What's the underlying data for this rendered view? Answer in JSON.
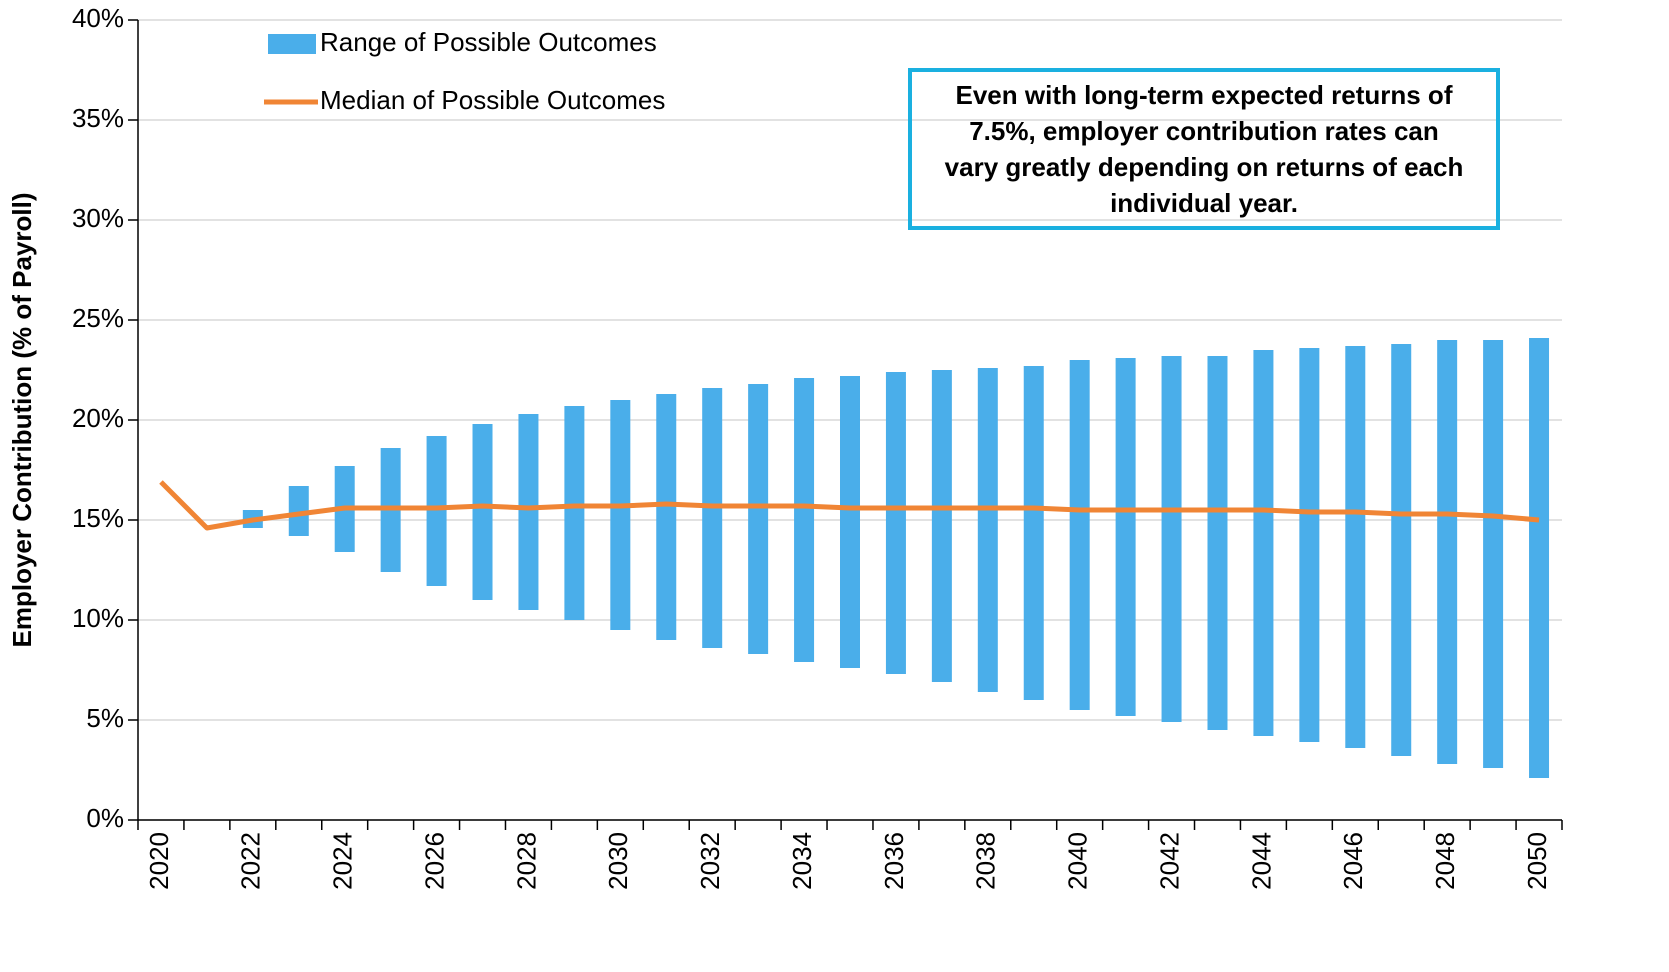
{
  "chart_data": {
    "type": "range-bar-line",
    "y_label": "Employer Contribution (% of Payroll)",
    "annotation": "Even with long-term expected returns of 7.5%, employer contribution rates can vary greatly depending on returns of each individual year.",
    "categories": [
      "2020",
      null,
      "2022",
      null,
      "2024",
      null,
      "2026",
      null,
      "2028",
      null,
      "2030",
      null,
      "2032",
      null,
      "2034",
      null,
      "2036",
      null,
      "2038",
      null,
      "2040",
      null,
      "2042",
      null,
      "2044",
      null,
      "2046",
      null,
      "2048",
      null,
      "2050"
    ],
    "ylim": [
      0,
      40
    ],
    "yticks": [
      {
        "value": 0,
        "label": "0%"
      },
      {
        "value": 5,
        "label": "5%"
      },
      {
        "value": 10,
        "label": "10%"
      },
      {
        "value": 15,
        "label": "15%"
      },
      {
        "value": 20,
        "label": "20%"
      },
      {
        "value": 25,
        "label": "25%"
      },
      {
        "value": 30,
        "label": "30%"
      },
      {
        "value": 35,
        "label": "35%"
      },
      {
        "value": 40,
        "label": "40%"
      }
    ],
    "grid": true,
    "series": [
      {
        "name": "Range of Possible Outcomes",
        "color": "#4aaeea",
        "low": [
          null,
          null,
          14.6,
          14.2,
          13.4,
          12.4,
          11.7,
          11.0,
          10.5,
          10.0,
          9.5,
          9.0,
          8.6,
          8.3,
          7.9,
          7.6,
          7.3,
          6.9,
          6.4,
          6.0,
          5.5,
          5.2,
          4.9,
          4.5,
          4.2,
          3.9,
          3.6,
          3.2,
          2.8,
          2.6,
          2.1
        ],
        "high": [
          null,
          null,
          15.5,
          16.7,
          17.7,
          18.6,
          19.2,
          19.8,
          20.3,
          20.7,
          21.0,
          21.3,
          21.6,
          21.8,
          22.1,
          22.2,
          22.4,
          22.5,
          22.6,
          22.7,
          23.0,
          23.1,
          23.2,
          23.2,
          23.5,
          23.6,
          23.7,
          23.8,
          24.0,
          24.0,
          24.1
        ]
      },
      {
        "name": "Median of Possible Outcomes",
        "color": "#f08535",
        "values": [
          16.9,
          14.6,
          15.0,
          15.3,
          15.6,
          15.6,
          15.6,
          15.7,
          15.6,
          15.7,
          15.7,
          15.8,
          15.7,
          15.7,
          15.7,
          15.6,
          15.6,
          15.6,
          15.6,
          15.6,
          15.5,
          15.5,
          15.5,
          15.5,
          15.5,
          15.4,
          15.4,
          15.3,
          15.3,
          15.2,
          15.0
        ]
      }
    ]
  }
}
